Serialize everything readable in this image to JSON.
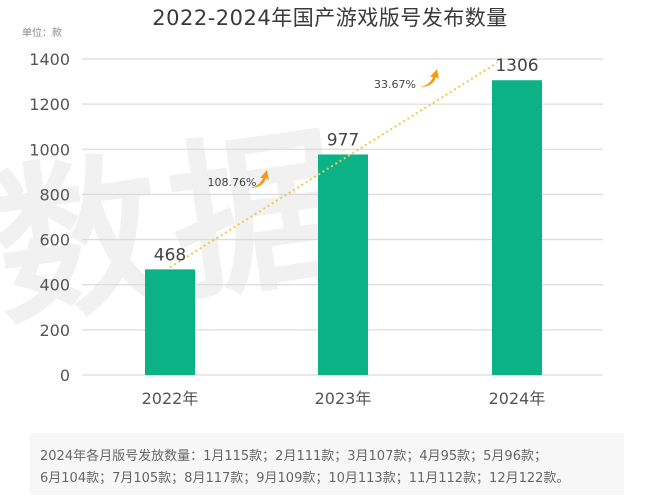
{
  "title": "2022-2024年国产游戏版号发布数量",
  "unit_label": "单位：款",
  "watermark": "数据",
  "chart_data": {
    "type": "bar",
    "title": "2022-2024年国产游戏版号发布数量",
    "xlabel": "",
    "ylabel": "单位：款",
    "categories": [
      "2022年",
      "2023年",
      "2024年"
    ],
    "values": [
      468,
      977,
      1306
    ],
    "ylim": [
      0,
      1400
    ],
    "yticks": [
      0,
      200,
      400,
      600,
      800,
      1000,
      1200,
      1400
    ],
    "grid": true,
    "bar_color": "#0bb286",
    "trendline": {
      "style": "dotted",
      "color": "#f2c84b"
    },
    "annotations": [
      {
        "text": "108.76%",
        "between": [
          "2022年",
          "2023年"
        ],
        "icon": "up-arrow-icon",
        "color": "#f39c12"
      },
      {
        "text": "33.67%",
        "between": [
          "2023年",
          "2024年"
        ],
        "icon": "up-arrow-icon",
        "color": "#f39c12"
      }
    ]
  },
  "note": {
    "line1": "2024年各月版号发放数量：1月115款；2月111款；3月107款；4月95款；5月96款；",
    "line2": "6月104款；7月105款；8月117款；9月109款；10月113款；11月112款；12月122款。"
  }
}
